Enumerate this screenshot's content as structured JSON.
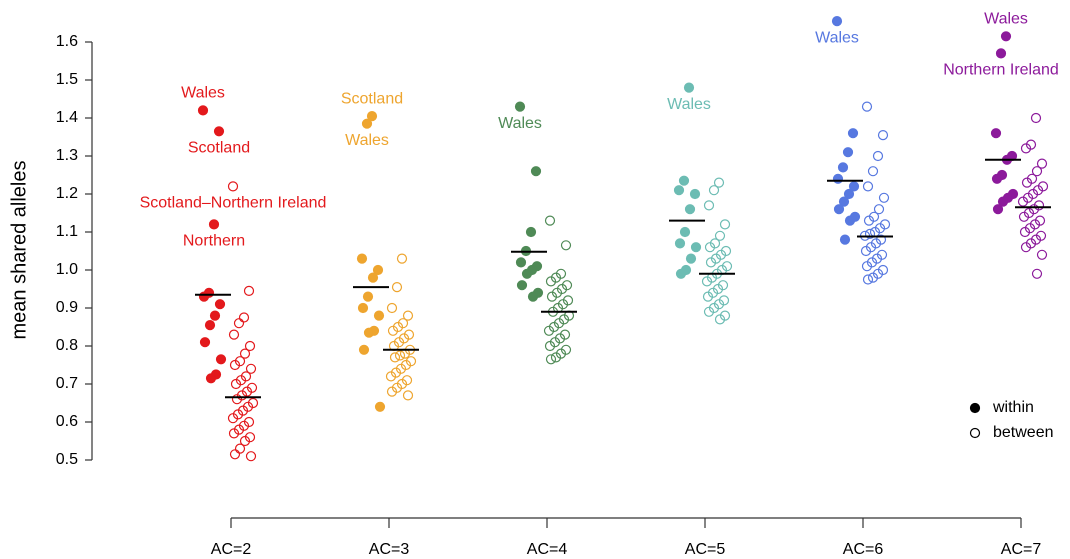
{
  "chart_data": {
    "type": "strip",
    "y_label": "mean shared alleles",
    "ylim": [
      0.5,
      1.6
    ],
    "yticks": [
      0.5,
      0.6,
      0.7,
      0.8,
      0.9,
      {
        "value": 1,
        "label": "1.0"
      },
      1.1,
      1.2,
      1.3,
      1.4,
      1.5,
      1.6
    ],
    "legend": "bottom-right",
    "series": [
      {
        "name": "within",
        "marker": "filled"
      },
      {
        "name": "between",
        "marker": "open"
      }
    ],
    "groups": [
      {
        "category": "AC=2",
        "color": "#e3191c",
        "within": [
          1.42,
          1.365,
          1.12,
          0.94,
          0.93,
          0.91,
          0.88,
          0.855,
          0.81,
          0.765,
          0.725,
          0.715
        ],
        "within_labels": [
          "Wales",
          "Scotland",
          "Northern",
          null,
          null,
          null,
          null,
          null,
          null,
          null,
          null,
          null
        ],
        "within_center": 0.935,
        "between": [
          1.22,
          0.945,
          0.875,
          0.86,
          0.83,
          0.8,
          0.78,
          0.76,
          0.75,
          0.74,
          0.72,
          0.71,
          0.7,
          0.69,
          0.68,
          0.67,
          0.66,
          0.65,
          0.64,
          0.63,
          0.62,
          0.61,
          0.6,
          0.59,
          0.58,
          0.57,
          0.56,
          0.55,
          0.53,
          0.515,
          0.51
        ],
        "between_labels": [
          "Scotland–Northern Ireland",
          null,
          null,
          null,
          null,
          null,
          null,
          null,
          null,
          null,
          null,
          null,
          null,
          null,
          null,
          null,
          null,
          null,
          null,
          null,
          null,
          null,
          null,
          null,
          null,
          null,
          null,
          null,
          null,
          null,
          null
        ],
        "between_center": 0.665
      },
      {
        "category": "AC=3",
        "color": "#eea52f",
        "within": [
          1.405,
          1.385,
          1.03,
          1.0,
          0.98,
          0.93,
          0.9,
          0.88,
          0.84,
          0.835,
          0.79,
          0.64
        ],
        "within_labels": [
          "Scotland",
          "Wales",
          null,
          null,
          null,
          null,
          null,
          null,
          null,
          null,
          null,
          null
        ],
        "within_center": 0.955,
        "between": [
          1.03,
          0.955,
          0.9,
          0.88,
          0.86,
          0.85,
          0.84,
          0.83,
          0.82,
          0.81,
          0.8,
          0.79,
          0.78,
          0.775,
          0.77,
          0.76,
          0.75,
          0.74,
          0.73,
          0.72,
          0.71,
          0.7,
          0.69,
          0.68,
          0.67
        ],
        "between_center": 0.79
      },
      {
        "category": "AC=4",
        "color": "#4f8a56",
        "within": [
          1.43,
          1.26,
          1.1,
          1.05,
          1.02,
          1.01,
          1.0,
          0.99,
          0.96,
          0.94,
          0.93
        ],
        "within_labels": [
          "Wales",
          null,
          null,
          null,
          null,
          null,
          null,
          null,
          null,
          null,
          null
        ],
        "within_center": 1.048,
        "between": [
          1.13,
          1.065,
          0.99,
          0.98,
          0.97,
          0.96,
          0.95,
          0.94,
          0.93,
          0.92,
          0.91,
          0.9,
          0.89,
          0.88,
          0.87,
          0.86,
          0.85,
          0.84,
          0.83,
          0.82,
          0.81,
          0.8,
          0.79,
          0.78,
          0.77,
          0.765
        ],
        "between_center": 0.89
      },
      {
        "category": "AC=5",
        "color": "#6cbcb3",
        "within": [
          1.48,
          1.235,
          1.21,
          1.2,
          1.16,
          1.1,
          1.07,
          1.06,
          1.03,
          1.0,
          0.99
        ],
        "within_labels": [
          "Wales",
          null,
          null,
          null,
          null,
          null,
          null,
          null,
          null,
          null,
          null
        ],
        "within_center": 1.13,
        "between": [
          1.23,
          1.21,
          1.17,
          1.12,
          1.09,
          1.07,
          1.06,
          1.05,
          1.04,
          1.03,
          1.02,
          1.01,
          1.0,
          0.99,
          0.98,
          0.97,
          0.96,
          0.95,
          0.94,
          0.93,
          0.92,
          0.91,
          0.9,
          0.89,
          0.88,
          0.87
        ],
        "between_center": 0.99
      },
      {
        "category": "AC=6",
        "color": "#5778e0",
        "within": [
          1.655,
          1.36,
          1.31,
          1.27,
          1.24,
          1.22,
          1.2,
          1.18,
          1.16,
          1.14,
          1.13,
          1.08
        ],
        "within_labels": [
          "Wales",
          null,
          null,
          null,
          null,
          null,
          null,
          null,
          null,
          null,
          null,
          null
        ],
        "within_center": 1.235,
        "between": [
          1.43,
          1.355,
          1.3,
          1.26,
          1.22,
          1.19,
          1.16,
          1.14,
          1.13,
          1.12,
          1.11,
          1.1,
          1.095,
          1.09,
          1.08,
          1.07,
          1.06,
          1.05,
          1.04,
          1.03,
          1.02,
          1.01,
          1.0,
          0.99,
          0.98,
          0.975
        ],
        "between_center": 1.088
      },
      {
        "category": "AC=7",
        "color": "#8c1a9b",
        "within": [
          1.615,
          1.57,
          1.36,
          1.3,
          1.29,
          1.25,
          1.24,
          1.2,
          1.19,
          1.18,
          1.16
        ],
        "within_labels": [
          "Wales",
          "Northern Ireland",
          null,
          null,
          null,
          null,
          null,
          null,
          null,
          null,
          null
        ],
        "within_center": 1.29,
        "between": [
          1.4,
          1.33,
          1.32,
          1.28,
          1.26,
          1.24,
          1.23,
          1.22,
          1.21,
          1.2,
          1.19,
          1.18,
          1.17,
          1.16,
          1.15,
          1.14,
          1.13,
          1.12,
          1.11,
          1.1,
          1.09,
          1.08,
          1.07,
          1.06,
          1.04,
          0.99
        ],
        "between_center": 1.165
      }
    ]
  }
}
